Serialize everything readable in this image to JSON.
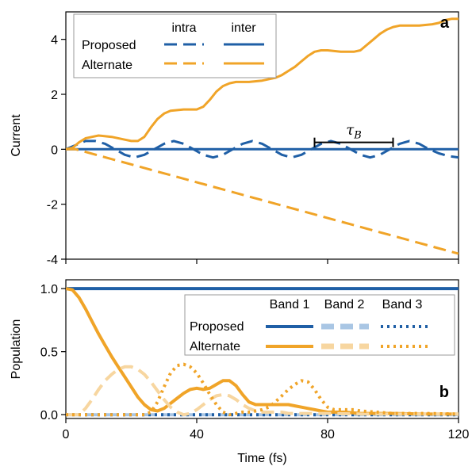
{
  "chart_data": [
    {
      "type": "line",
      "panel": "a",
      "ylabel": "Current",
      "xlim": [
        0,
        120
      ],
      "ylim": [
        -4,
        5
      ],
      "yticks": [
        -4,
        -2,
        0,
        2,
        4
      ],
      "ytick_labels": [
        "-4",
        "-2",
        "0",
        "2",
        "4"
      ],
      "legend": {
        "position": "top-left",
        "column_headers": [
          "intra",
          "inter"
        ],
        "row_labels": [
          "Proposed",
          "Alternate"
        ]
      },
      "annotation": {
        "label": "τB",
        "x_start": 76,
        "x_end": 100,
        "y": 1.0
      },
      "series": [
        {
          "key": "proposed_intra",
          "color": "#1f5fa6",
          "dash": "dashed",
          "x": [
            0,
            3,
            6,
            9,
            12,
            15,
            18,
            21,
            24,
            27,
            30,
            33,
            36,
            39,
            42,
            45,
            48,
            51,
            54,
            57,
            60,
            63,
            66,
            69,
            72,
            75,
            78,
            81,
            84,
            87,
            90,
            93,
            96,
            99,
            102,
            105,
            108,
            111,
            114,
            117,
            120
          ],
          "y": [
            0,
            0.15,
            0.3,
            0.3,
            0.2,
            0.0,
            -0.2,
            -0.3,
            -0.2,
            0.0,
            0.2,
            0.3,
            0.2,
            0.0,
            -0.2,
            -0.3,
            -0.2,
            0.0,
            0.2,
            0.3,
            0.2,
            0.0,
            -0.2,
            -0.3,
            -0.2,
            0.0,
            0.2,
            0.3,
            0.2,
            0.0,
            -0.2,
            -0.3,
            -0.2,
            0.0,
            0.2,
            0.3,
            0.2,
            0.0,
            -0.15,
            -0.25,
            -0.3
          ]
        },
        {
          "key": "proposed_inter",
          "color": "#1f5fa6",
          "dash": "solid",
          "x": [
            0,
            120
          ],
          "y": [
            0,
            0
          ]
        },
        {
          "key": "alternate_intra",
          "color": "#f0a428",
          "dash": "dashed",
          "x": [
            0,
            3,
            120
          ],
          "y": [
            0,
            0,
            -3.8
          ]
        },
        {
          "key": "alternate_inter",
          "color": "#f0a428",
          "dash": "solid",
          "x": [
            0,
            2,
            4,
            6,
            8,
            10,
            14,
            18,
            20,
            22,
            24,
            26,
            28,
            30,
            32,
            36,
            40,
            42,
            44,
            46,
            48,
            50,
            52,
            54,
            56,
            60,
            64,
            66,
            68,
            70,
            72,
            74,
            76,
            78,
            80,
            84,
            88,
            90,
            92,
            94,
            96,
            98,
            100,
            102,
            104,
            108,
            112,
            114,
            116,
            118,
            120
          ],
          "y": [
            0,
            0.05,
            0.25,
            0.4,
            0.45,
            0.5,
            0.45,
            0.35,
            0.3,
            0.3,
            0.45,
            0.8,
            1.1,
            1.3,
            1.4,
            1.45,
            1.45,
            1.55,
            1.8,
            2.1,
            2.3,
            2.4,
            2.45,
            2.45,
            2.45,
            2.5,
            2.6,
            2.7,
            2.85,
            3.0,
            3.2,
            3.4,
            3.55,
            3.6,
            3.6,
            3.55,
            3.55,
            3.6,
            3.8,
            4.0,
            4.2,
            4.35,
            4.45,
            4.5,
            4.5,
            4.5,
            4.55,
            4.6,
            4.7,
            4.75,
            4.75
          ]
        }
      ]
    },
    {
      "type": "line",
      "panel": "b",
      "xlabel": "Time (fs)",
      "ylabel": "Population",
      "xlim": [
        0,
        120
      ],
      "ylim": [
        -0.03,
        1.07
      ],
      "xticks": [
        0,
        40,
        80,
        120
      ],
      "xtick_labels": [
        "0",
        "40",
        "80",
        "120"
      ],
      "yticks": [
        0,
        0.5,
        1.0
      ],
      "ytick_labels": [
        "0.0",
        "0.5",
        "1.0"
      ],
      "legend": {
        "position": "top-right",
        "column_headers": [
          "Band 1",
          "Band 2",
          "Band 3"
        ],
        "row_labels": [
          "Proposed",
          "Alternate"
        ]
      },
      "series": [
        {
          "key": "proposed_band1",
          "color": "#1f5fa6",
          "dash": "solid",
          "x": [
            0,
            120
          ],
          "y": [
            1.0,
            1.0
          ]
        },
        {
          "key": "proposed_band2",
          "color": "#a9c6e4",
          "dash": "dashed",
          "x": [
            0,
            120
          ],
          "y": [
            0,
            0
          ]
        },
        {
          "key": "proposed_band3",
          "color": "#1f5fa6",
          "dash": "dotted",
          "x": [
            0,
            120
          ],
          "y": [
            0,
            0
          ]
        },
        {
          "key": "alternate_band1",
          "color": "#f0a428",
          "dash": "solid",
          "x": [
            0,
            2,
            4,
            6,
            8,
            10,
            12,
            14,
            16,
            18,
            20,
            22,
            24,
            26,
            28,
            30,
            32,
            34,
            36,
            38,
            40,
            42,
            44,
            46,
            48,
            50,
            52,
            54,
            56,
            58,
            60,
            62,
            64,
            66,
            68,
            70,
            72,
            74,
            76,
            78,
            80,
            85,
            90,
            100,
            110,
            120
          ],
          "y": [
            1.0,
            0.99,
            0.93,
            0.84,
            0.74,
            0.64,
            0.55,
            0.46,
            0.38,
            0.3,
            0.22,
            0.14,
            0.08,
            0.04,
            0.03,
            0.05,
            0.09,
            0.13,
            0.17,
            0.2,
            0.21,
            0.2,
            0.21,
            0.24,
            0.27,
            0.27,
            0.23,
            0.16,
            0.1,
            0.08,
            0.08,
            0.08,
            0.08,
            0.08,
            0.08,
            0.07,
            0.06,
            0.05,
            0.04,
            0.03,
            0.02,
            0.02,
            0.01,
            0.01,
            0.005,
            0.005
          ]
        },
        {
          "key": "alternate_band2",
          "color": "#f7d6a0",
          "dash": "dashed",
          "x": [
            0,
            4,
            6,
            8,
            10,
            12,
            14,
            16,
            18,
            20,
            22,
            24,
            26,
            28,
            30,
            32,
            34,
            36,
            38,
            40,
            42,
            44,
            46,
            48,
            50,
            52,
            54,
            56,
            58,
            60,
            62,
            64,
            66,
            68,
            70,
            75,
            80,
            90,
            100,
            110,
            120
          ],
          "y": [
            0,
            0,
            0.05,
            0.12,
            0.2,
            0.27,
            0.32,
            0.36,
            0.38,
            0.38,
            0.36,
            0.32,
            0.26,
            0.19,
            0.12,
            0.06,
            0.02,
            0,
            0.01,
            0.04,
            0.08,
            0.12,
            0.15,
            0.16,
            0.15,
            0.12,
            0.08,
            0.05,
            0.03,
            0.02,
            0.02,
            0.02,
            0.02,
            0.01,
            0.01,
            0.01,
            0.01,
            0.005,
            0.005,
            0.005,
            0.005
          ]
        },
        {
          "key": "alternate_band3",
          "color": "#f0a428",
          "dash": "dotted",
          "x": [
            0,
            24,
            26,
            28,
            30,
            32,
            34,
            36,
            38,
            40,
            42,
            44,
            46,
            48,
            50,
            52,
            54,
            56,
            58,
            60,
            62,
            64,
            66,
            68,
            70,
            72,
            74,
            76,
            78,
            80,
            82,
            84,
            86,
            88,
            90,
            95,
            100,
            110,
            120
          ],
          "y": [
            0,
            0,
            0.02,
            0.1,
            0.22,
            0.33,
            0.39,
            0.4,
            0.38,
            0.33,
            0.25,
            0.16,
            0.08,
            0.02,
            0,
            0.01,
            0.02,
            0.02,
            0.03,
            0.04,
            0.06,
            0.1,
            0.15,
            0.2,
            0.24,
            0.27,
            0.26,
            0.2,
            0.12,
            0.06,
            0.04,
            0.04,
            0.04,
            0.04,
            0.03,
            0.02,
            0.01,
            0.01,
            0.005
          ]
        }
      ]
    }
  ]
}
